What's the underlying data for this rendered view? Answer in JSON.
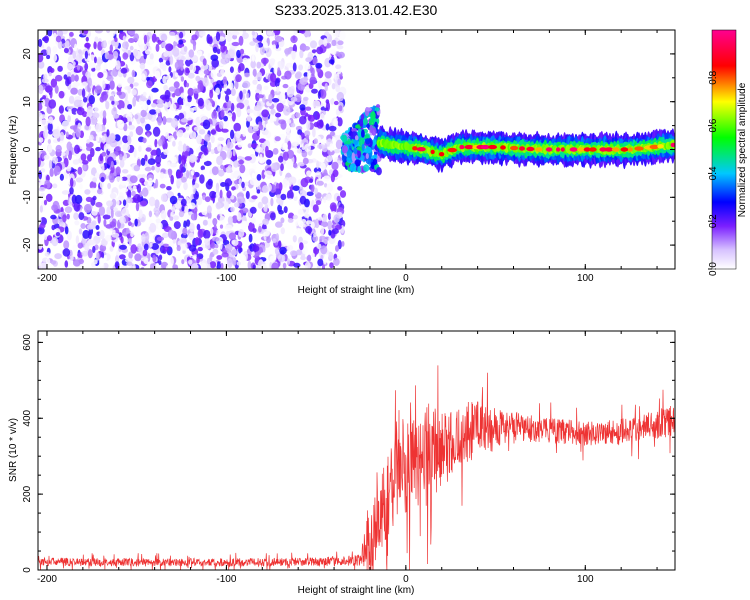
{
  "title": "S233.2025.313.01.42.E30",
  "chart_data": [
    {
      "type": "heatmap",
      "title": "S233.2025.313.01.42.E30",
      "xlabel": "Height of straight line (km)",
      "ylabel": "Frequency (Hz)",
      "xlim": [
        -205,
        150
      ],
      "ylim": [
        -25,
        25
      ],
      "xticks": [
        -200,
        -100,
        0,
        100
      ],
      "yticks": [
        20,
        10,
        0,
        -10,
        -20
      ],
      "colorbar": {
        "label": "Normalized spectral amplitude",
        "range": [
          0,
          1
        ],
        "ticks": [
          "0.0",
          "0.2",
          "0.4",
          "0.6",
          "0.8"
        ],
        "tick_values": [
          0,
          0.2,
          0.4,
          0.6,
          0.8
        ],
        "colors": [
          "#ffffff",
          "#9b30ff",
          "#0000ff",
          "#00ffff",
          "#00ff00",
          "#ffff00",
          "#ff0000",
          "#ff00aa"
        ]
      },
      "regions": [
        {
          "name": "noise",
          "x_range": [
            -205,
            -35
          ],
          "freq_range": [
            -25,
            25
          ],
          "amplitude_range": [
            0.0,
            0.2
          ]
        },
        {
          "name": "onset",
          "x_range": [
            -35,
            -15
          ],
          "freq_range": [
            -8,
            8
          ],
          "amplitude_range": [
            0.1,
            0.5
          ]
        },
        {
          "name": "signal",
          "x_range": [
            -15,
            150
          ],
          "freq_range": [
            -2,
            2
          ],
          "amplitude_range": [
            0.3,
            1.0
          ]
        }
      ],
      "signal_ridge": {
        "x": [
          -30,
          -20,
          -10,
          0,
          10,
          20,
          30,
          50,
          75,
          100,
          125,
          150
        ],
        "freq": [
          0,
          2,
          1,
          0.5,
          0,
          -1,
          0.5,
          0.5,
          0,
          0,
          0,
          1
        ]
      }
    },
    {
      "type": "line",
      "xlabel": "Height of straight line (km)",
      "ylabel": "SNR (10 * v/v)",
      "xlim": [
        -205,
        150
      ],
      "ylim": [
        0,
        630
      ],
      "xticks": [
        -200,
        -100,
        0,
        100
      ],
      "yticks": [
        0,
        200,
        400,
        600
      ],
      "color": "#ee3333",
      "series": [
        {
          "name": "SNR",
          "x": [
            -205,
            -150,
            -100,
            -50,
            -25,
            -20,
            -15,
            -10,
            -5,
            0,
            5,
            10,
            20,
            30,
            40,
            50,
            60,
            75,
            100,
            125,
            140,
            150
          ],
          "y_base": [
            22,
            20,
            20,
            22,
            25,
            80,
            150,
            200,
            260,
            280,
            290,
            300,
            320,
            350,
            370,
            380,
            375,
            370,
            360,
            365,
            385,
            395
          ],
          "y_spread": [
            18,
            18,
            18,
            18,
            25,
            250,
            250,
            260,
            260,
            250,
            220,
            220,
            190,
            160,
            140,
            90,
            70,
            55,
            55,
            60,
            65,
            70
          ]
        }
      ]
    }
  ]
}
